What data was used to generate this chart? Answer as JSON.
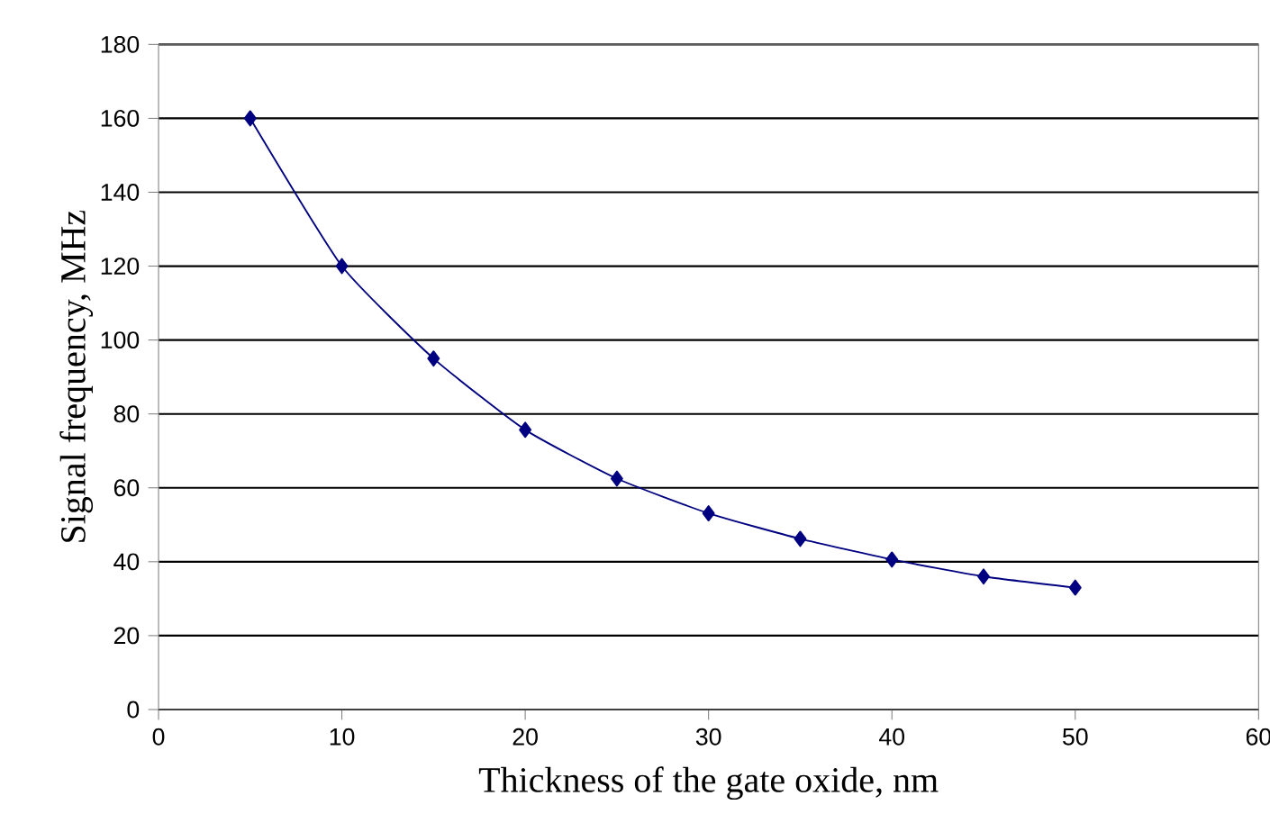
{
  "chart_data": {
    "type": "line",
    "xlabel": "Thickness of the gate oxide, nm",
    "ylabel": "Signal frequency, MHz",
    "x": [
      5,
      10,
      15,
      20,
      25,
      30,
      35,
      40,
      45,
      50
    ],
    "series": [
      {
        "color": "#000080",
        "values": [
          160,
          120,
          95,
          75.7,
          62.5,
          53.1,
          46.2,
          40.6,
          36,
          33
        ]
      }
    ],
    "xlim": [
      0,
      60
    ],
    "ylim": [
      0,
      180
    ],
    "xticks": [
      0,
      10,
      20,
      30,
      40,
      50,
      60
    ],
    "yticks": [
      0,
      20,
      40,
      60,
      80,
      100,
      120,
      140,
      160,
      180
    ],
    "grid": "y",
    "marker": "diamond",
    "line_style": "solid"
  }
}
